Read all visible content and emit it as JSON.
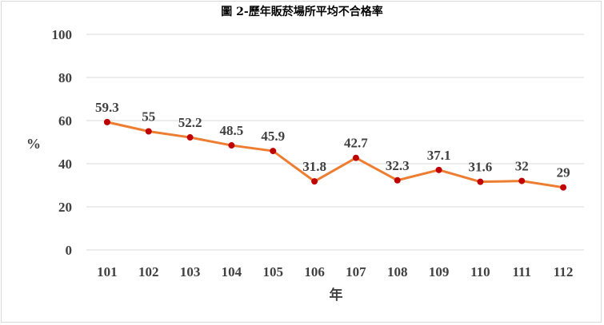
{
  "chart_data": {
    "type": "line",
    "title": "圖 2-歷年販菸場所平均不合格率",
    "xlabel": "年",
    "ylabel": "%",
    "categories": [
      "101",
      "102",
      "103",
      "104",
      "105",
      "106",
      "107",
      "108",
      "109",
      "110",
      "111",
      "112"
    ],
    "series": [
      {
        "values": [
          59.3,
          55,
          52.2,
          48.5,
          45.9,
          31.8,
          42.7,
          32.3,
          37.1,
          31.6,
          32,
          29
        ],
        "line_color": "#ed7d31",
        "marker_color": "#c00000"
      }
    ],
    "ylim": [
      0,
      100
    ],
    "yticks": [
      0,
      20,
      40,
      60,
      80,
      100
    ],
    "grid": true,
    "legend": "none",
    "data_labels": true
  }
}
